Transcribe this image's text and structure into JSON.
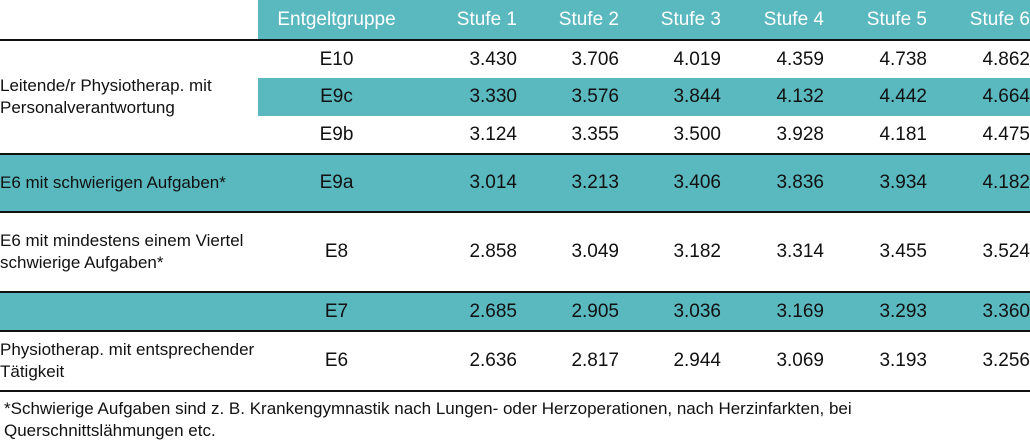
{
  "header": {
    "group": "Entgeltgruppe",
    "steps": [
      "Stufe 1",
      "Stufe 2",
      "Stufe 3",
      "Stufe 4",
      "Stufe 5",
      "Stufe 6"
    ]
  },
  "groups": [
    {
      "label": "Leitende/r Physiotherap. mit Personalverantwortung",
      "rows": [
        {
          "eg": "E10",
          "values": [
            "3.430",
            "3.706",
            "4.019",
            "4.359",
            "4.738",
            "4.862"
          ],
          "teal": false
        },
        {
          "eg": "E9c",
          "values": [
            "3.330",
            "3.576",
            "3.844",
            "4.132",
            "4.442",
            "4.664"
          ],
          "teal": true
        },
        {
          "eg": "E9b",
          "values": [
            "3.124",
            "3.355",
            "3.500",
            "3.928",
            "4.181",
            "4.475"
          ],
          "teal": false
        }
      ]
    },
    {
      "label": "E6 mit schwierigen Aufgaben*",
      "rows": [
        {
          "eg": "E9a",
          "values": [
            "3.014",
            "3.213",
            "3.406",
            "3.836",
            "3.934",
            "4.182"
          ],
          "teal": true
        }
      ]
    },
    {
      "label": "E6 mit mindestens einem Viertel schwierige Aufgaben*",
      "rows": [
        {
          "eg": "E8",
          "values": [
            "2.858",
            "3.049",
            "3.182",
            "3.314",
            "3.455",
            "3.524"
          ],
          "teal": false
        }
      ]
    },
    {
      "label": "",
      "rows": [
        {
          "eg": "E7",
          "values": [
            "2.685",
            "2.905",
            "3.036",
            "3.169",
            "3.293",
            "3.360"
          ],
          "teal": true
        }
      ]
    },
    {
      "label": "Physiotherap. mit entsprechender Tätigkeit",
      "rows": [
        {
          "eg": "E6",
          "values": [
            "2.636",
            "2.817",
            "2.944",
            "3.069",
            "3.193",
            "3.256"
          ],
          "teal": false
        }
      ]
    }
  ],
  "footnote": "*Schwierige Aufgaben sind z. B. Krankengymnastik nach Lungen- oder Herzoperationen, nach Herzinfarkten, bei Querschnittslähmungen etc.",
  "colors": {
    "accent": "#5ab8bf",
    "rule": "#111111"
  }
}
